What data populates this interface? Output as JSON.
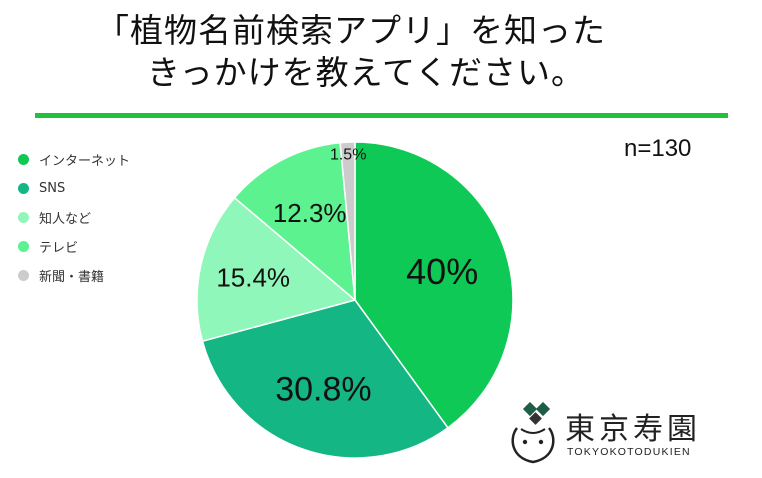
{
  "title": {
    "line1": "「植物名前検索アプリ」を知った",
    "line2": "きっかけを教えてください。"
  },
  "sample_label": "n=130",
  "colors": {
    "underline": "#22c13b",
    "slices": [
      "#0fc956",
      "#14b783",
      "#8ff7b9",
      "#5cf28f",
      "#cccccc"
    ]
  },
  "logo": {
    "name": "東京寿園",
    "sub": "TOKYOKOTODUKIEN"
  },
  "chart_data": {
    "type": "pie",
    "categories": [
      "インターネット",
      "SNS",
      "知人など",
      "テレビ",
      "新聞・書籍"
    ],
    "values": [
      40,
      30.8,
      15.4,
      12.3,
      1.5
    ],
    "labels": [
      "40%",
      "30.8%",
      "15.4%",
      "12.3%",
      "1.5%"
    ],
    "legend": "left",
    "start": "top, clockwise"
  }
}
